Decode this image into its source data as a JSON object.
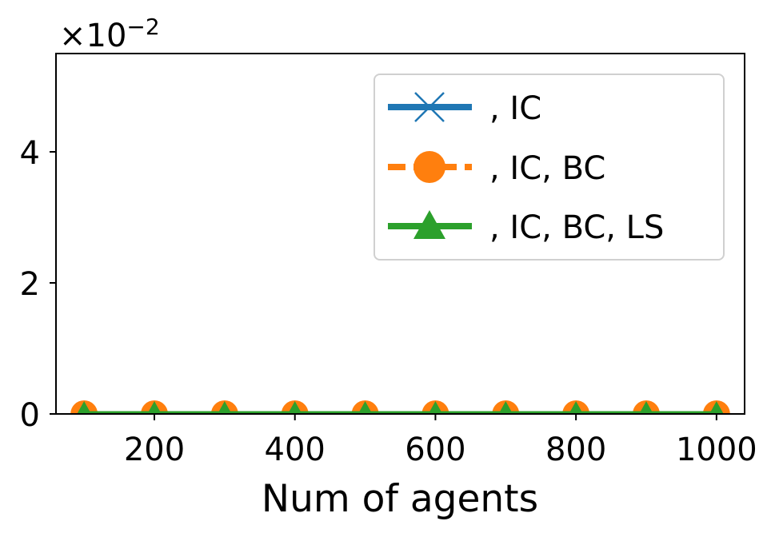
{
  "chart_data": {
    "type": "line",
    "xlabel": "Num of agents",
    "ylabel": "",
    "scale_multiplier": {
      "base": "×10",
      "exponent": "−2"
    },
    "x": [
      100,
      200,
      300,
      400,
      500,
      600,
      700,
      800,
      900,
      1000
    ],
    "xlim": [
      60,
      1040
    ],
    "ylim": [
      0,
      5.5
    ],
    "x_ticks": [
      200,
      400,
      600,
      800,
      1000
    ],
    "x_tick_labels": [
      "200",
      "400",
      "600",
      "800",
      "1000"
    ],
    "y_ticks": [
      0,
      2,
      4
    ],
    "y_tick_labels": [
      "0",
      "2",
      "4"
    ],
    "grid": false,
    "legend_position": "top-right",
    "series": [
      {
        "name": ", IC",
        "color": "#1f77b4",
        "marker": "x",
        "line_style": "solid",
        "values": [
          0,
          0,
          0,
          0,
          0,
          0,
          0,
          0,
          0,
          0
        ]
      },
      {
        "name": ", IC, BC",
        "color": "#ff7f0e",
        "marker": "circle",
        "line_style": "dashed",
        "values": [
          0,
          0,
          0,
          0,
          0,
          0,
          0,
          0,
          0,
          0
        ]
      },
      {
        "name": ", IC, BC, LS",
        "color": "#2ca02c",
        "marker": "triangle",
        "line_style": "solid",
        "values": [
          0,
          0,
          0,
          0,
          0,
          0,
          0,
          0,
          0,
          0
        ]
      }
    ]
  }
}
